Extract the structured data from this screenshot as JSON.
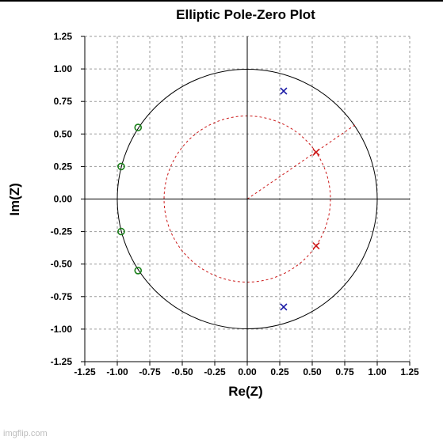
{
  "watermark": "imgflip.com",
  "chart_data": {
    "type": "scatter",
    "title": "Elliptic Pole-Zero Plot",
    "xlabel": "Re(Z)",
    "ylabel": "Im(Z)",
    "xlim": [
      -1.25,
      1.25
    ],
    "ylim": [
      -1.25,
      1.25
    ],
    "xticks": [
      "-1.25",
      "-1.00",
      "-0.75",
      "-0.50",
      "-0.25",
      "0.00",
      "0.25",
      "0.50",
      "0.75",
      "1.00",
      "1.25"
    ],
    "yticks": [
      "1.25",
      "1.00",
      "0.75",
      "0.50",
      "0.25",
      "0.00",
      "-0.25",
      "-0.50",
      "-0.75",
      "-1.00",
      "-1.25"
    ],
    "grid": true,
    "unit_circle_radius": 1.0,
    "inner_circle_radius": 0.64,
    "radial_line_end": [
      0.83,
      0.57
    ],
    "series": [
      {
        "marker": "o",
        "color": "#1a7f1a",
        "points": [
          [
            -0.84,
            0.55
          ],
          [
            -0.97,
            0.25
          ],
          [
            -0.97,
            -0.25
          ],
          [
            -0.84,
            -0.55
          ]
        ]
      },
      {
        "marker": "x",
        "color": "#1a1aa6",
        "points": [
          [
            0.28,
            0.83
          ],
          [
            0.28,
            -0.83
          ]
        ]
      },
      {
        "marker": "x",
        "color": "#cc1a1a",
        "points": [
          [
            0.53,
            0.36
          ],
          [
            0.53,
            -0.36
          ]
        ]
      }
    ]
  }
}
